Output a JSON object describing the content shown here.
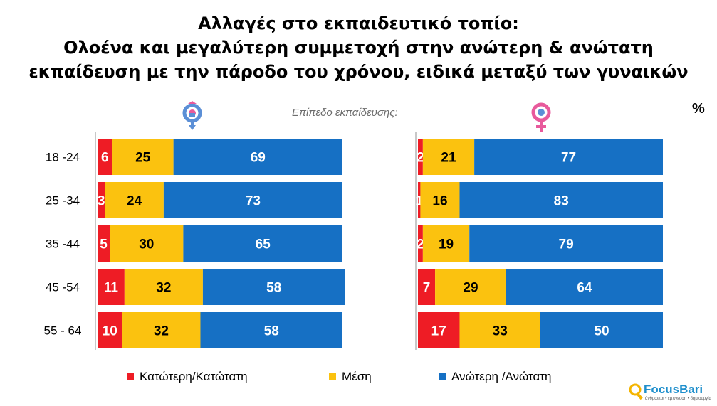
{
  "title": {
    "line1": "Αλλαγές στο εκπαιδευτικό τοπίο:",
    "line2": "Ολοένα και μεγαλύτερη συμμετοχή στην ανώτερη & ανώτατη",
    "line3": "εκπαίδευση με την πάροδο του χρόνου, ειδικά μεταξύ των γυναικών"
  },
  "subtitle": "Επίπεδο εκπαίδευσης:",
  "unit": "%",
  "logo": {
    "name_focus": "Focus",
    "name_bari": "Bari",
    "tagline": "άνθρωποι • έμπνευση • δημιουργία"
  },
  "colors": {
    "low": "#ee1c25",
    "mid": "#fbc20f",
    "high": "#1670c4"
  },
  "icons": {
    "male": "male-symbol-icon",
    "female": "female-symbol-icon"
  },
  "chart_data": [
    {
      "type": "bar",
      "orientation": "horizontal-stacked-100",
      "group": "male",
      "categories": [
        "18 -24",
        "25 -34",
        "35 -44",
        "45 -54",
        "55 - 64"
      ],
      "series": [
        {
          "name": "Κατώτερη/Κατώτατη",
          "values": [
            6,
            3,
            5,
            11,
            10
          ]
        },
        {
          "name": "Μέση",
          "values": [
            25,
            24,
            30,
            32,
            32
          ]
        },
        {
          "name": "Ανώτερη /Ανώτατη",
          "values": [
            69,
            73,
            65,
            58,
            58
          ]
        }
      ],
      "xlim": [
        0,
        100
      ]
    },
    {
      "type": "bar",
      "orientation": "horizontal-stacked-100",
      "group": "female",
      "categories": [
        "18 -24",
        "25 -34",
        "35 -44",
        "45 -54",
        "55 - 64"
      ],
      "series": [
        {
          "name": "Κατώτερη/Κατώτατη",
          "values": [
            2,
            1,
            2,
            7,
            17
          ]
        },
        {
          "name": "Μέση",
          "values": [
            21,
            16,
            19,
            29,
            33
          ]
        },
        {
          "name": "Ανώτερη /Ανώτατη",
          "values": [
            77,
            83,
            79,
            64,
            50
          ]
        }
      ],
      "xlim": [
        0,
        100
      ]
    }
  ],
  "legend": {
    "position": "bottom",
    "items": [
      "Κατώτερη/Κατώτατη",
      "Μέση",
      "Ανώτερη /Ανώτατη"
    ]
  }
}
